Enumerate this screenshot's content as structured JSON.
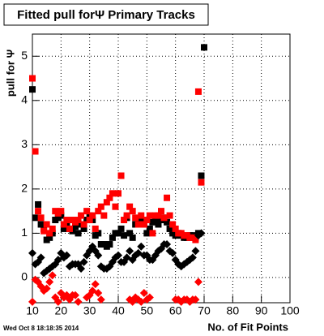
{
  "chart_data": {
    "type": "scatter",
    "title": "Fitted pull forΨ  Primary Tracks",
    "y_label": "pull for Ψ",
    "x_label": "No. of Fit Points",
    "timestamp": "Wed Oct  8 18:18:35 2014",
    "grid": true,
    "xlim": [
      10,
      100
    ],
    "xticks": [
      10,
      20,
      30,
      40,
      50,
      60,
      70,
      80,
      90,
      100
    ],
    "ylim": [
      -0.57,
      5.5
    ],
    "yticks": [
      0,
      1,
      2,
      3,
      4,
      5
    ],
    "x": [
      10,
      11,
      12,
      13,
      14,
      15,
      16,
      17,
      18,
      19,
      20,
      21,
      22,
      23,
      24,
      25,
      26,
      27,
      28,
      29,
      30,
      31,
      32,
      33,
      34,
      35,
      36,
      37,
      38,
      39,
      40,
      41,
      42,
      43,
      44,
      45,
      46,
      47,
      48,
      49,
      50,
      51,
      52,
      53,
      54,
      55,
      56,
      57,
      58,
      59,
      60,
      61,
      62,
      63,
      64,
      65,
      66,
      67,
      68,
      69,
      70
    ],
    "series": [
      {
        "color": "#000000",
        "marker": "square",
        "values": [
          4.25,
          1.35,
          1.65,
          1.2,
          1.1,
          0.85,
          0.9,
          1.0,
          1.3,
          1.35,
          1.4,
          1.1,
          1.2,
          1.1,
          1.05,
          1.15,
          1.0,
          1.2,
          1.1,
          1.3,
          1.4,
          1.3,
          0.95,
          1.0,
          0.75,
          0.75,
          0.7,
          0.75,
          0.9,
          1.0,
          1.0,
          1.1,
          0.95,
          1.35,
          1.0,
          0.9,
          1.2,
          1.3,
          1.3,
          1.2,
          1.0,
          1.1,
          1.25,
          1.3,
          1.2,
          1.3,
          1.35,
          1.25,
          1.1,
          1.0,
          0.95,
          1.0,
          0.95,
          0.9,
          0.9,
          0.95,
          0.95,
          0.9,
          1.0,
          2.3,
          5.2
        ]
      },
      {
        "color": "#ff0000",
        "marker": "square",
        "values": [
          4.5,
          2.85,
          1.5,
          1.35,
          1.05,
          1.2,
          1.0,
          1.1,
          1.5,
          1.45,
          1.5,
          1.2,
          1.3,
          1.1,
          1.3,
          1.25,
          1.3,
          1.4,
          1.2,
          1.5,
          1.3,
          1.4,
          1.1,
          1.5,
          1.6,
          1.4,
          1.7,
          1.8,
          1.9,
          1.6,
          1.9,
          2.3,
          1.3,
          1.4,
          1.6,
          1.5,
          1.35,
          1.2,
          1.4,
          1.2,
          1.3,
          1.4,
          1.0,
          1.4,
          1.4,
          1.5,
          1.35,
          1.8,
          1.4,
          1.2,
          1.1,
          1.0,
          1.0,
          0.95,
          0.95,
          0.9,
          0.9,
          0.85,
          4.2,
          2.15,
          null
        ]
      },
      {
        "color": "#000000",
        "marker": "diamond",
        "values": [
          0.55,
          0.3,
          0.35,
          0.45,
          0.1,
          0.15,
          0.2,
          0.25,
          0.3,
          0.4,
          0.55,
          0.45,
          0.5,
          0.25,
          0.3,
          0.3,
          0.3,
          0.2,
          0.35,
          0.5,
          0.6,
          0.7,
          0.6,
          0.5,
          0.25,
          0.2,
          0.2,
          0.25,
          0.35,
          0.45,
          0.5,
          0.35,
          0.35,
          0.45,
          0.6,
          0.4,
          0.5,
          0.55,
          0.7,
          0.5,
          0.5,
          0.4,
          0.4,
          0.5,
          0.6,
          0.65,
          0.75,
          0.75,
          0.6,
          0.55,
          0.4,
          0.3,
          0.25,
          0.3,
          0.35,
          0.4,
          0.45,
          0.6,
          0.95,
          1.0,
          null
        ]
      },
      {
        "color": "#ff0000",
        "marker": "diamond",
        "values": [
          -0.55,
          -0.05,
          -0.1,
          -0.2,
          -0.3,
          -0.25,
          -0.1,
          0.05,
          -0.45,
          -0.55,
          -0.35,
          -0.45,
          -0.4,
          -0.5,
          -0.4,
          -0.4,
          -0.55,
          null,
          null,
          -0.45,
          -0.4,
          -0.3,
          -0.15,
          -0.35,
          -0.5,
          null,
          null,
          null,
          null,
          null,
          null,
          null,
          null,
          null,
          -0.5,
          -0.55,
          -0.45,
          -0.5,
          -0.55,
          -0.35,
          -0.5,
          -0.45,
          null,
          null,
          null,
          null,
          null,
          null,
          null,
          null,
          -0.5,
          -0.5,
          -0.55,
          -0.5,
          -0.5,
          -0.55,
          -0.5,
          -0.5,
          -0.1,
          null,
          null
        ]
      }
    ]
  }
}
